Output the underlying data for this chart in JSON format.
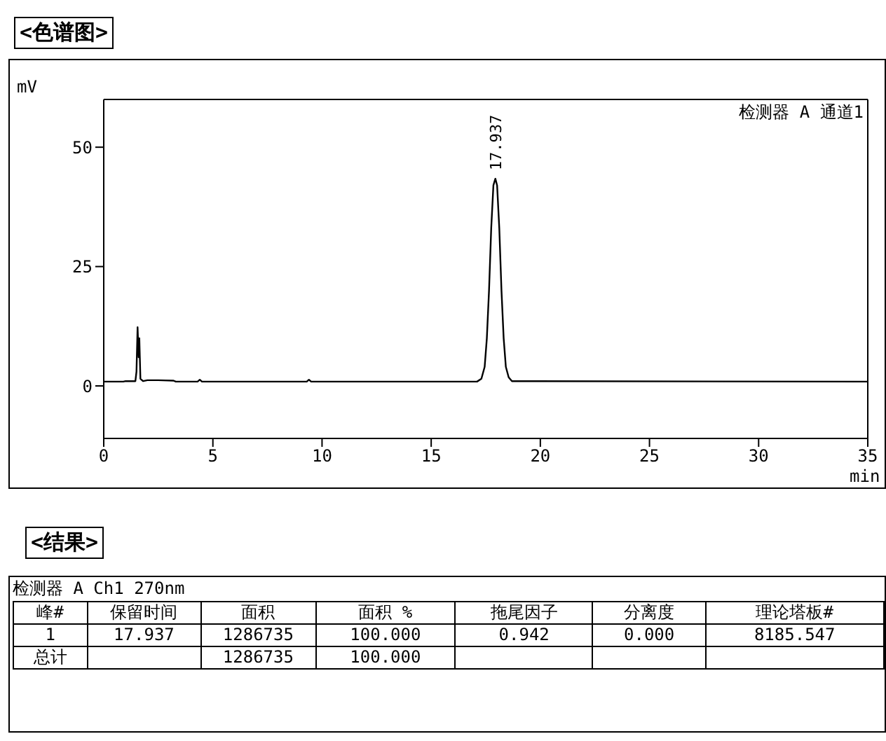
{
  "chart_data": {
    "type": "line",
    "title": "<色谱图>",
    "xlabel": "min",
    "ylabel": "mV",
    "x": [
      0,
      0.9,
      1.0,
      1.45,
      1.5,
      1.55,
      1.6,
      1.63,
      1.68,
      1.8,
      2.0,
      2.5,
      3.2,
      3.3,
      4.3,
      4.4,
      4.5,
      9.3,
      9.4,
      9.5,
      17.1,
      17.3,
      17.45,
      17.55,
      17.65,
      17.75,
      17.85,
      17.94,
      18.02,
      18.12,
      18.22,
      18.32,
      18.42,
      18.55,
      18.7,
      35
    ],
    "series": [
      {
        "color": "#000000",
        "values": [
          0.9,
          0.9,
          1.0,
          1.0,
          3,
          12.3,
          6,
          10,
          1.5,
          1.0,
          1.2,
          1.2,
          1.1,
          0.9,
          0.9,
          1.3,
          0.9,
          0.9,
          1.3,
          0.9,
          0.9,
          1.5,
          4,
          10,
          20,
          33,
          42,
          43.4,
          42,
          33,
          20,
          10,
          4,
          1.8,
          1.0,
          0.9
        ]
      }
    ],
    "xlim": [
      0,
      35
    ],
    "xticks": [
      0,
      5,
      10,
      15,
      20,
      25,
      30,
      35
    ],
    "ylim": [
      -11,
      60
    ],
    "yticks": [
      0,
      25,
      50
    ],
    "marker": "none",
    "line_style": "solid",
    "annotations": [
      "检测器 A 通道1",
      {
        "text": "17.937",
        "x": 17.937,
        "y": 43.4
      },
      "<结果>",
      "检测器 A Ch1 270nm",
      "峰#",
      "保留时间",
      "面积",
      "面积 %",
      "拖尾因子",
      "分离度",
      "理论塔板#",
      "1",
      "17.937",
      "1286735",
      "100.000",
      "0.942",
      "0.000",
      "8185.547",
      "总计",
      "1286735",
      "100.000"
    ]
  }
}
